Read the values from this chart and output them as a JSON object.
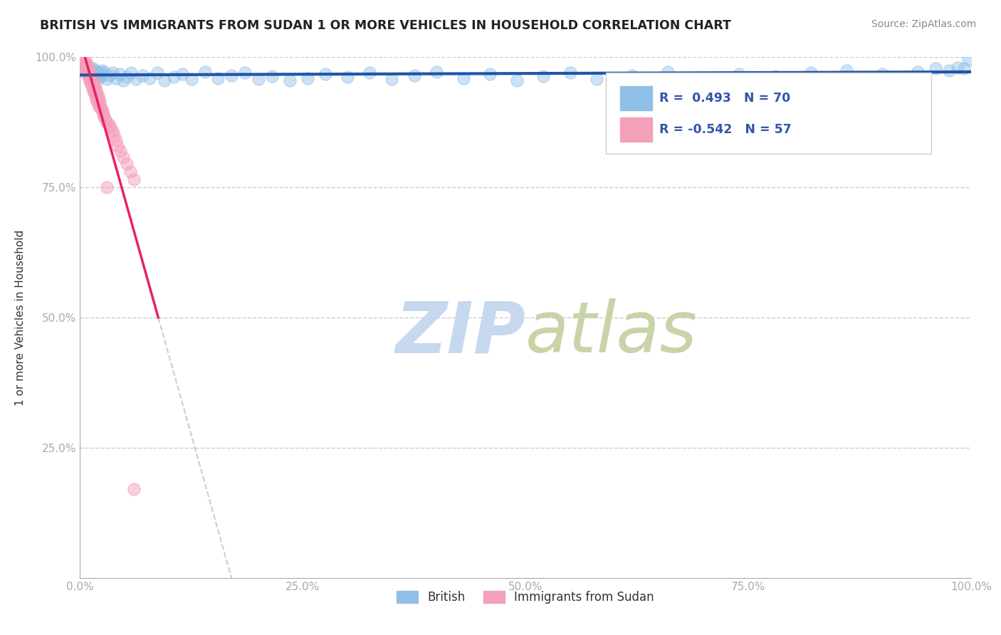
{
  "title": "BRITISH VS IMMIGRANTS FROM SUDAN 1 OR MORE VEHICLES IN HOUSEHOLD CORRELATION CHART",
  "source_text": "Source: ZipAtlas.com",
  "ylabel": "1 or more Vehicles in Household",
  "xlim": [
    0,
    1
  ],
  "ylim": [
    0,
    1
  ],
  "xticks": [
    0.0,
    0.25,
    0.5,
    0.75,
    1.0
  ],
  "yticks": [
    0.0,
    0.25,
    0.5,
    0.75,
    1.0
  ],
  "xticklabels": [
    "0.0%",
    "25.0%",
    "50.0%",
    "75.0%",
    "100.0%"
  ],
  "yticklabels": [
    "",
    "25.0%",
    "50.0%",
    "75.0%",
    "100.0%"
  ],
  "blue_R": 0.493,
  "blue_N": 70,
  "pink_R": -0.542,
  "pink_N": 57,
  "blue_color": "#90C0E8",
  "pink_color": "#F4A0B8",
  "blue_line_color": "#2255AA",
  "pink_line_color": "#E8206A",
  "legend_label_blue": "British",
  "legend_label_pink": "Immigrants from Sudan",
  "british_x": [
    0.005,
    0.007,
    0.009,
    0.01,
    0.011,
    0.012,
    0.013,
    0.014,
    0.015,
    0.016,
    0.017,
    0.018,
    0.019,
    0.02,
    0.021,
    0.022,
    0.023,
    0.024,
    0.025,
    0.027,
    0.03,
    0.033,
    0.036,
    0.04,
    0.044,
    0.048,
    0.052,
    0.057,
    0.063,
    0.07,
    0.078,
    0.087,
    0.095,
    0.105,
    0.115,
    0.125,
    0.14,
    0.155,
    0.17,
    0.185,
    0.2,
    0.215,
    0.235,
    0.255,
    0.275,
    0.3,
    0.325,
    0.35,
    0.375,
    0.4,
    0.43,
    0.46,
    0.49,
    0.52,
    0.55,
    0.58,
    0.62,
    0.66,
    0.7,
    0.74,
    0.78,
    0.82,
    0.86,
    0.9,
    0.94,
    0.96,
    0.975,
    0.985,
    0.992,
    0.997
  ],
  "british_y": [
    0.98,
    0.975,
    0.982,
    0.97,
    0.968,
    0.975,
    0.972,
    0.978,
    0.965,
    0.97,
    0.975,
    0.968,
    0.972,
    0.965,
    0.96,
    0.97,
    0.963,
    0.975,
    0.968,
    0.972,
    0.958,
    0.965,
    0.97,
    0.96,
    0.968,
    0.955,
    0.962,
    0.97,
    0.958,
    0.965,
    0.96,
    0.97,
    0.955,
    0.962,
    0.968,
    0.958,
    0.972,
    0.96,
    0.965,
    0.97,
    0.958,
    0.963,
    0.955,
    0.96,
    0.968,
    0.962,
    0.97,
    0.958,
    0.965,
    0.972,
    0.96,
    0.968,
    0.955,
    0.963,
    0.97,
    0.958,
    0.965,
    0.972,
    0.96,
    0.968,
    0.963,
    0.97,
    0.975,
    0.968,
    0.972,
    0.978,
    0.975,
    0.98,
    0.978,
    0.995
  ],
  "sudan_x": [
    0.003,
    0.004,
    0.005,
    0.005,
    0.006,
    0.006,
    0.007,
    0.007,
    0.008,
    0.008,
    0.009,
    0.009,
    0.01,
    0.01,
    0.011,
    0.011,
    0.012,
    0.012,
    0.013,
    0.013,
    0.014,
    0.014,
    0.015,
    0.015,
    0.016,
    0.016,
    0.017,
    0.017,
    0.018,
    0.018,
    0.019,
    0.019,
    0.02,
    0.02,
    0.021,
    0.021,
    0.022,
    0.023,
    0.024,
    0.025,
    0.026,
    0.027,
    0.028,
    0.03,
    0.032,
    0.034,
    0.036,
    0.038,
    0.04,
    0.042,
    0.045,
    0.048,
    0.052,
    0.056,
    0.06,
    0.03,
    0.06
  ],
  "sudan_y": [
    0.99,
    0.985,
    0.982,
    0.978,
    0.992,
    0.975,
    0.988,
    0.97,
    0.985,
    0.968,
    0.98,
    0.965,
    0.975,
    0.96,
    0.97,
    0.955,
    0.965,
    0.95,
    0.96,
    0.945,
    0.955,
    0.94,
    0.95,
    0.935,
    0.945,
    0.93,
    0.94,
    0.925,
    0.935,
    0.92,
    0.93,
    0.915,
    0.925,
    0.91,
    0.92,
    0.905,
    0.915,
    0.905,
    0.9,
    0.895,
    0.89,
    0.885,
    0.88,
    0.875,
    0.87,
    0.865,
    0.858,
    0.85,
    0.84,
    0.83,
    0.82,
    0.808,
    0.795,
    0.78,
    0.765,
    0.75,
    0.17
  ],
  "sudan_trend_x_start": 0.0,
  "sudan_trend_x_solid_end": 0.155,
  "sudan_trend_y_start": 1.01,
  "sudan_trend_slope": -5.0,
  "blue_trend_x_start": 0.0,
  "blue_trend_y_start": 0.955,
  "blue_trend_slope": 0.045
}
